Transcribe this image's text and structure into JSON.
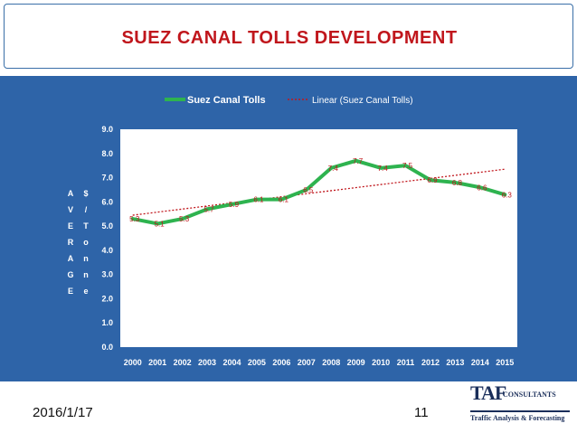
{
  "slide": {
    "title": "SUEZ CANAL TOLLS DEVELOPMENT",
    "date": "2016/1/17",
    "page_number": "11"
  },
  "logo": {
    "name": "TAF",
    "suffix": "CONSULTANTS",
    "tagline": "Traffic Analysis & Forecasting"
  },
  "colors": {
    "background_panel": "#2e64a8",
    "plot_area": "#ffffff",
    "series_line": "#2eb34f",
    "trend_line": "#c0161c",
    "data_label": "#c0161c",
    "title": "#c0161c"
  },
  "chart_data": {
    "type": "line",
    "title": "",
    "x": [
      "2000",
      "2001",
      "2002",
      "2003",
      "2004",
      "2005",
      "2006",
      "2007",
      "2008",
      "2009",
      "2010",
      "2011",
      "2012",
      "2013",
      "2014",
      "2015"
    ],
    "series": [
      {
        "name": "Suez Canal Tolls",
        "values": [
          5.3,
          5.1,
          5.3,
          5.7,
          5.9,
          6.1,
          6.1,
          6.5,
          7.4,
          7.7,
          7.4,
          7.5,
          6.9,
          6.8,
          6.6,
          6.3
        ],
        "data_labels": [
          "5.3",
          "5.1",
          "5.3",
          "5.7",
          "5.9",
          "6.1",
          "6.1",
          "6.5",
          "7.4",
          "7.7",
          "7.4",
          "7.5",
          "6.9",
          "6.8",
          "6.6",
          "6.3"
        ]
      }
    ],
    "trendline": {
      "name": "Linear (Suez Canal Tolls)",
      "type": "linear",
      "start": 5.45,
      "end": 7.35
    },
    "ylabel_left": "AVERAGE",
    "ylabel_right": "$/Tonne",
    "ylim": [
      0,
      9
    ],
    "yticks": [
      "0.0",
      "1.0",
      "2.0",
      "3.0",
      "4.0",
      "5.0",
      "6.0",
      "7.0",
      "8.0",
      "9.0"
    ],
    "grid": false,
    "legend": "top"
  }
}
